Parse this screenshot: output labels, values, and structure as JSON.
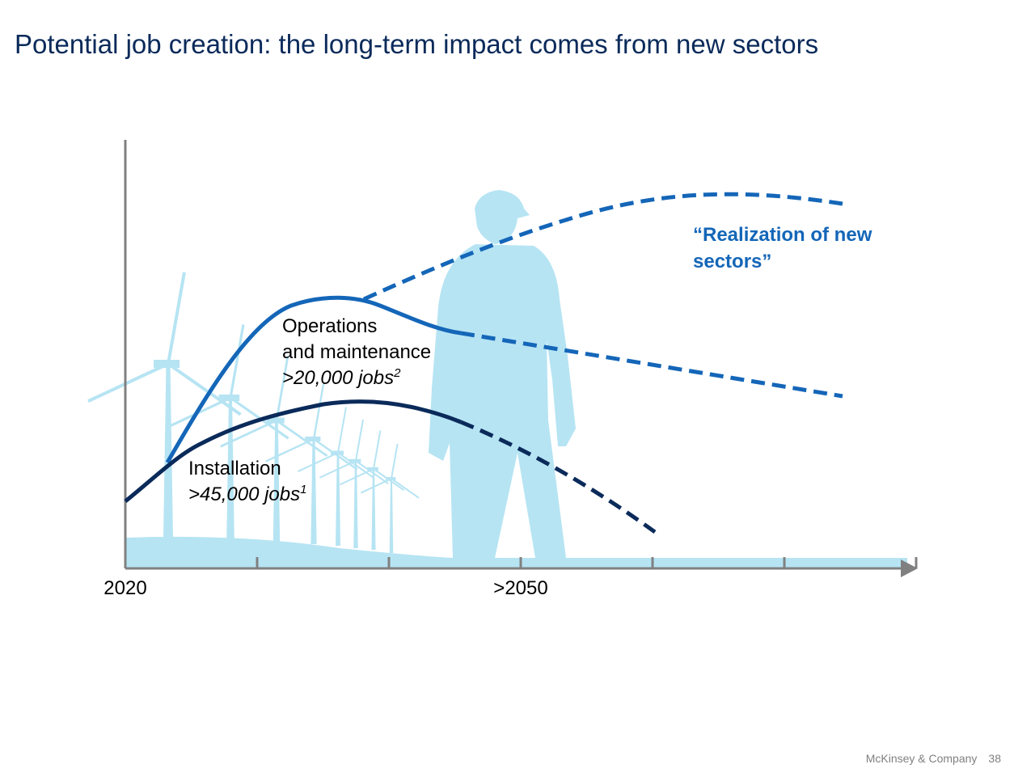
{
  "title": "Potential job creation: the long-term impact comes from new sectors",
  "chart_data": {
    "type": "line",
    "x_ticks": [
      {
        "label": "2020"
      },
      {
        "label": ""
      },
      {
        "label": ""
      },
      {
        "label": ">2050"
      },
      {
        "label": ""
      },
      {
        "label": ""
      },
      {
        "label": ""
      }
    ],
    "series": [
      {
        "name": "Installation",
        "value_text": ">45,000 jobs",
        "footnote": "1",
        "color": "#0a2a5a"
      },
      {
        "name": "Operations and maintenance",
        "name_lines": [
          "Operations",
          "and maintenance"
        ],
        "value_text": ">20,000 jobs",
        "footnote": "2",
        "color": "#1466b8"
      },
      {
        "name": "“Realization of new sectors”",
        "name_lines": [
          "“Realization of new",
          "sectors”"
        ],
        "color": "#1466b8"
      }
    ],
    "grid": false,
    "legend": "none",
    "background_image": "wind-turbines-and-worker-silhouette"
  },
  "footer": {
    "company": "McKinsey & Company",
    "page": "38"
  }
}
